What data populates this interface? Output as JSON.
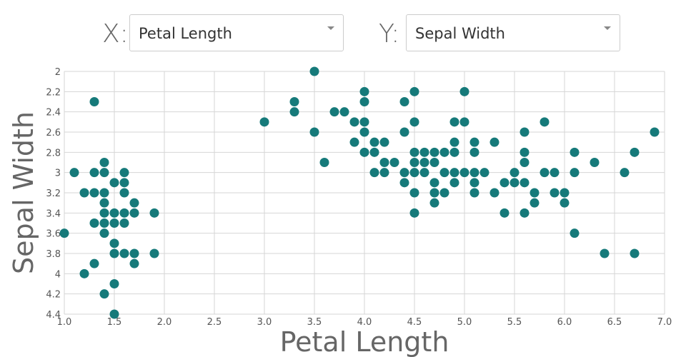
{
  "controls": {
    "x_label": "X:",
    "x_selected": "Petal Length",
    "y_label": "Y:",
    "y_selected": "Sepal Width"
  },
  "colors": {
    "point": "#167a7a",
    "grid": "#d6d6d6"
  },
  "icons": {
    "dropdown": "caret-down-icon"
  },
  "chart_data": {
    "type": "scatter",
    "xlabel": "Petal Length",
    "ylabel": "Sepal Width",
    "xlim": [
      1.0,
      7.0
    ],
    "ylim": [
      2.0,
      4.4
    ],
    "y_inverted": true,
    "grid": true,
    "x_ticks": [
      "1.0",
      "1.5",
      "2.0",
      "2.5",
      "3.0",
      "3.5",
      "4.0",
      "4.5",
      "5.0",
      "5.5",
      "6.0",
      "6.5",
      "7.0"
    ],
    "y_ticks": [
      "2",
      "2.2",
      "2.4",
      "2.6",
      "2.8",
      "3",
      "3.2",
      "3.4",
      "3.6",
      "3.8",
      "4",
      "4.2",
      "4.4"
    ],
    "points": [
      [
        1.0,
        3.6
      ],
      [
        1.1,
        3.0
      ],
      [
        1.2,
        3.2
      ],
      [
        1.2,
        4.0
      ],
      [
        1.3,
        2.3
      ],
      [
        1.3,
        3.0
      ],
      [
        1.3,
        3.2
      ],
      [
        1.3,
        3.5
      ],
      [
        1.3,
        3.9
      ],
      [
        1.4,
        2.9
      ],
      [
        1.4,
        3.0
      ],
      [
        1.4,
        3.2
      ],
      [
        1.4,
        3.3
      ],
      [
        1.4,
        3.4
      ],
      [
        1.4,
        3.5
      ],
      [
        1.4,
        3.6
      ],
      [
        1.4,
        4.2
      ],
      [
        1.5,
        3.1
      ],
      [
        1.5,
        3.4
      ],
      [
        1.5,
        3.5
      ],
      [
        1.5,
        3.7
      ],
      [
        1.5,
        3.8
      ],
      [
        1.5,
        4.1
      ],
      [
        1.5,
        4.4
      ],
      [
        1.6,
        3.0
      ],
      [
        1.6,
        3.1
      ],
      [
        1.6,
        3.2
      ],
      [
        1.6,
        3.4
      ],
      [
        1.6,
        3.5
      ],
      [
        1.6,
        3.8
      ],
      [
        1.7,
        3.3
      ],
      [
        1.7,
        3.4
      ],
      [
        1.7,
        3.8
      ],
      [
        1.7,
        3.9
      ],
      [
        1.9,
        3.4
      ],
      [
        1.9,
        3.8
      ],
      [
        3.0,
        2.5
      ],
      [
        3.3,
        2.3
      ],
      [
        3.3,
        2.4
      ],
      [
        3.5,
        2.0
      ],
      [
        3.5,
        2.6
      ],
      [
        3.6,
        2.9
      ],
      [
        3.7,
        2.4
      ],
      [
        3.8,
        2.4
      ],
      [
        3.9,
        2.5
      ],
      [
        3.9,
        2.7
      ],
      [
        4.0,
        2.2
      ],
      [
        4.0,
        2.3
      ],
      [
        4.0,
        2.5
      ],
      [
        4.0,
        2.6
      ],
      [
        4.0,
        2.8
      ],
      [
        4.1,
        2.7
      ],
      [
        4.1,
        2.8
      ],
      [
        4.1,
        3.0
      ],
      [
        4.2,
        2.7
      ],
      [
        4.2,
        2.9
      ],
      [
        4.2,
        3.0
      ],
      [
        4.3,
        2.9
      ],
      [
        4.4,
        2.3
      ],
      [
        4.4,
        2.6
      ],
      [
        4.4,
        3.0
      ],
      [
        4.4,
        3.1
      ],
      [
        4.5,
        2.2
      ],
      [
        4.5,
        2.5
      ],
      [
        4.5,
        2.8
      ],
      [
        4.5,
        2.9
      ],
      [
        4.5,
        3.0
      ],
      [
        4.5,
        3.2
      ],
      [
        4.5,
        3.4
      ],
      [
        4.6,
        2.8
      ],
      [
        4.6,
        2.9
      ],
      [
        4.6,
        3.0
      ],
      [
        4.7,
        2.8
      ],
      [
        4.7,
        2.9
      ],
      [
        4.7,
        3.1
      ],
      [
        4.7,
        3.2
      ],
      [
        4.7,
        3.3
      ],
      [
        4.8,
        2.8
      ],
      [
        4.8,
        3.0
      ],
      [
        4.8,
        3.2
      ],
      [
        4.9,
        2.5
      ],
      [
        4.9,
        2.7
      ],
      [
        4.9,
        2.8
      ],
      [
        4.9,
        3.0
      ],
      [
        4.9,
        3.1
      ],
      [
        5.0,
        2.2
      ],
      [
        5.0,
        2.5
      ],
      [
        5.0,
        3.0
      ],
      [
        5.1,
        2.7
      ],
      [
        5.1,
        2.8
      ],
      [
        5.1,
        3.0
      ],
      [
        5.1,
        3.1
      ],
      [
        5.1,
        3.2
      ],
      [
        5.2,
        3.0
      ],
      [
        5.3,
        2.7
      ],
      [
        5.3,
        3.2
      ],
      [
        5.4,
        3.1
      ],
      [
        5.4,
        3.4
      ],
      [
        5.5,
        3.0
      ],
      [
        5.5,
        3.1
      ],
      [
        5.6,
        2.6
      ],
      [
        5.6,
        2.8
      ],
      [
        5.6,
        2.9
      ],
      [
        5.6,
        3.1
      ],
      [
        5.6,
        3.4
      ],
      [
        5.7,
        3.2
      ],
      [
        5.7,
        3.3
      ],
      [
        5.8,
        2.5
      ],
      [
        5.8,
        3.0
      ],
      [
        5.9,
        3.0
      ],
      [
        5.9,
        3.2
      ],
      [
        6.0,
        3.2
      ],
      [
        6.0,
        3.3
      ],
      [
        6.1,
        2.8
      ],
      [
        6.1,
        3.0
      ],
      [
        6.1,
        3.6
      ],
      [
        6.3,
        2.9
      ],
      [
        6.4,
        3.8
      ],
      [
        6.6,
        3.0
      ],
      [
        6.7,
        2.8
      ],
      [
        6.7,
        3.8
      ],
      [
        6.9,
        2.6
      ]
    ]
  }
}
